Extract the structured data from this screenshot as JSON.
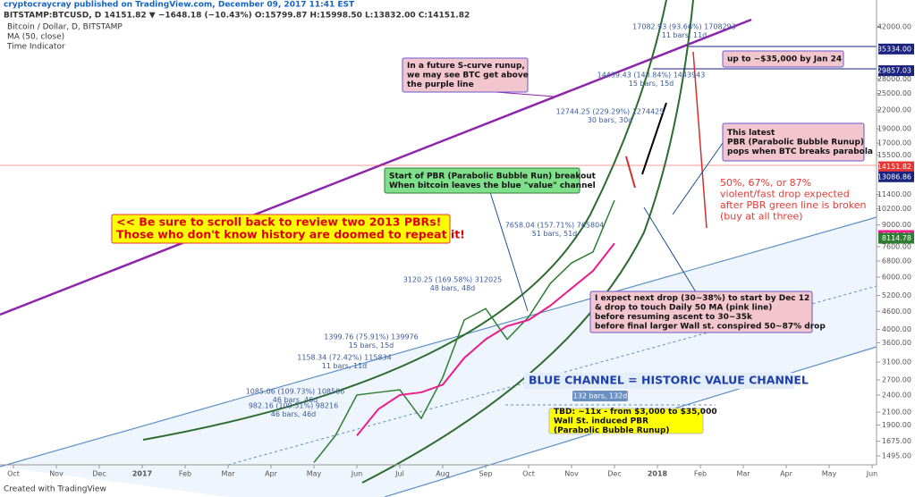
{
  "header": {
    "publisher": "cryptocraycray published on TradingView.com, December 09, 2017 11:41 EST",
    "symbol": "BITSTAMP:BTCUSD, D 14151.82 ▼ −1648.18 (−10.43%) O:15799.87 H:15998.50 L:13832.00 C:14151.82",
    "legend": [
      "Bitcoin / Dollar, D, BITSTAMP",
      "MA (50, close)",
      "Time Indicator"
    ]
  },
  "chart_data": {
    "type": "line",
    "log_scale": true,
    "categories": [
      "Oct",
      null,
      "Nov",
      null,
      "Dec",
      null,
      "2017",
      null,
      "Feb",
      null,
      "Mar",
      null,
      "Apr",
      null,
      "May",
      null,
      "Jun",
      null,
      "Jul",
      null,
      "Aug",
      null,
      "Sep",
      null,
      "Oct",
      null,
      "Nov",
      null,
      "Dec",
      null,
      "2018",
      null,
      "Feb",
      null,
      "Mar",
      null,
      "Apr",
      null,
      "May",
      null,
      "Jun"
    ],
    "series": [
      {
        "name": "Bitcoin / Dollar",
        "color": "#2e7d32",
        "values": [
          null,
          null,
          null,
          null,
          null,
          null,
          null,
          null,
          null,
          null,
          null,
          null,
          null,
          null,
          1420,
          1750,
          2400,
          2450,
          2500,
          2000,
          2750,
          4300,
          4700,
          3700,
          4400,
          5700,
          6700,
          7300,
          10900,
          null,
          null,
          null,
          null,
          null,
          null,
          null,
          null,
          null,
          null,
          null,
          null
        ]
      },
      {
        "name": "MA (50, close)",
        "color": "#e91e8c",
        "values": [
          null,
          null,
          null,
          null,
          null,
          null,
          null,
          null,
          null,
          null,
          null,
          null,
          null,
          null,
          null,
          null,
          1750,
          2150,
          2400,
          2450,
          2600,
          3200,
          3700,
          4100,
          4300,
          4800,
          5500,
          6300,
          7800,
          null,
          null,
          null,
          null,
          null,
          null,
          null,
          null,
          null,
          null,
          null,
          null
        ]
      }
    ],
    "ylim": [
      1395,
      46600
    ],
    "yticks": [
      {
        "value": 42000,
        "label": "42000.00"
      },
      {
        "value": 28000,
        "label": "28000.00"
      },
      {
        "value": 25000,
        "label": "25000.00"
      },
      {
        "value": 22000,
        "label": "22000.00"
      },
      {
        "value": 19000,
        "label": "19000.00"
      },
      {
        "value": 17000,
        "label": "17000.00"
      },
      {
        "value": 15500,
        "label": "15500.00"
      },
      {
        "value": 11400,
        "label": "11400.00"
      },
      {
        "value": 10200,
        "label": "10200.00"
      },
      {
        "value": 9000,
        "label": "9000.00"
      },
      {
        "value": 7600,
        "label": "7600.00"
      },
      {
        "value": 6800,
        "label": "6800.00"
      },
      {
        "value": 6000,
        "label": "6000.00"
      },
      {
        "value": 5200,
        "label": "5200.00"
      },
      {
        "value": 4600,
        "label": "4600.00"
      },
      {
        "value": 4000,
        "label": "4000.00"
      },
      {
        "value": 3600,
        "label": "3600.00"
      },
      {
        "value": 3100,
        "label": "3100.00"
      },
      {
        "value": 2700,
        "label": "2700.00"
      },
      {
        "value": 2400,
        "label": "2400.00"
      },
      {
        "value": 2100,
        "label": "2100.00"
      },
      {
        "value": 1900,
        "label": "1900.00"
      },
      {
        "value": 1675,
        "label": "1675.00"
      },
      {
        "value": 1495,
        "label": "1495.00"
      }
    ],
    "price_tags": [
      {
        "value": 35334,
        "label": "35334.00",
        "color": "#1a237e"
      },
      {
        "value": 29857.03,
        "label": "29857.03",
        "color": "#1a237e"
      },
      {
        "value": 14151.82,
        "label": "14151.82",
        "color": "#e53935"
      },
      {
        "value": 13086.86,
        "label": "13086.86",
        "color": "#1a237e"
      },
      {
        "value": 8292.3,
        "label": "8292.30",
        "color": "#e91e8c"
      },
      {
        "value": 8114.78,
        "label": "8114.78",
        "color": "#2e7d32"
      }
    ],
    "annotations": [
      [
        "In a future S-curve runup,",
        "we may see BTC get above",
        "the purple line"
      ],
      [
        "up to ~$35,000 by Jan 24"
      ],
      [
        "This latest",
        "PBR (Parabolic Bubble Runup)",
        "pops when BTC breaks parabola"
      ],
      [
        "Start of PBR (Parabolic Bubble Run) breakout",
        "When bitcoin leaves the blue \"value\" channel"
      ],
      [
        "<< Be sure to scroll back to review two 2013 PBRs!",
        "Those who don't know history are doomed to repeat it!"
      ],
      [
        "50%, 67%, or 87%",
        "violent/fast drop expected",
        "after PBR green line is broken",
        "(buy at all three)"
      ],
      [
        "I expect next drop (30~38%) to start by Dec 12",
        "& drop to touch Daily 50 MA (pink line)",
        "before resuming ascent to 30~35k",
        "before final larger Wall st. conspired 50~87% drop"
      ],
      [
        "BLUE CHANNEL = HISTORIC VALUE CHANNEL"
      ],
      [
        "TBD: ~11x - from $3,000 to $35,000",
        "Wall St. induced PBR",
        "(Parabolic Bubble Runup)"
      ],
      [
        "132 bars, 132d"
      ],
      [
        "17082.93 (93.66%) 1708293",
        "11 bars, 11d"
      ],
      [
        "14439.43 (143.84%) 1443943",
        "15 bars, 15d"
      ],
      [
        "12744.25 (229.29%) 1274425",
        "30 bars, 30d"
      ],
      [
        "7658.04 (157.71%) 765804",
        "51 bars, 51d"
      ],
      [
        "3120.25 (169.58%) 312025",
        "48 bars, 48d"
      ],
      [
        "1399.76 (75.91%) 139976",
        "15 bars, 15d"
      ],
      [
        "1158.34 (72.42%) 115834",
        "11 bars, 11d"
      ],
      [
        "1085.06 (109.73%) 108506",
        "46 bars, 46d"
      ],
      [
        "982.16 (109.51%) 98216",
        "46 bars, 46d"
      ]
    ]
  },
  "footer": "Created with TradingView"
}
